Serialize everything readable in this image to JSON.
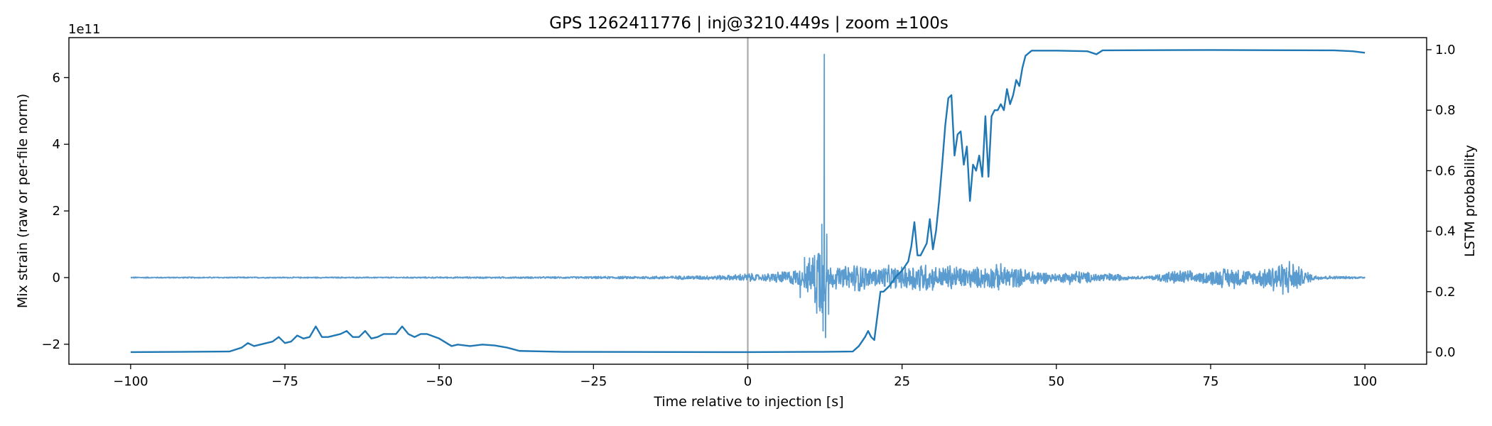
{
  "chart_data": {
    "type": "line",
    "title": "GPS 1262411776 | inj@3210.449s | zoom ±100s",
    "xlabel": "Time relative to injection [s]",
    "ylabel_left": "Mix strain (raw or per-file norm)",
    "ylabel_right": "LSTM probability",
    "left_axis_offset_label": "1e11",
    "xlim": [
      -110,
      110
    ],
    "ylim_left": [
      -2.6,
      7.2
    ],
    "ylim_right": [
      -0.04,
      1.04
    ],
    "x_ticks": [
      -100,
      -75,
      -50,
      -25,
      0,
      25,
      50,
      75,
      100
    ],
    "x_tick_labels": [
      "−100",
      "−75",
      "−50",
      "−25",
      "0",
      "25",
      "50",
      "75",
      "100"
    ],
    "y_left_ticks": [
      -2,
      0,
      2,
      4,
      6
    ],
    "y_left_tick_labels": [
      "−2",
      "0",
      "2",
      "4",
      "6"
    ],
    "y_right_ticks": [
      0.0,
      0.2,
      0.4,
      0.6,
      0.8,
      1.0
    ],
    "y_right_tick_labels": [
      "0.0",
      "0.2",
      "0.4",
      "0.6",
      "0.8",
      "1.0"
    ],
    "injection_marker": {
      "x": 0,
      "color": "#aaaaaa"
    },
    "colors": {
      "strain": "#5a9bd0",
      "probability": "#1f77b4"
    },
    "series": [
      {
        "name": "Mix strain",
        "axis": "left",
        "units": "1e11",
        "baseline": 0,
        "burst_envelope": [
          [
            -100,
            0.02
          ],
          [
            -60,
            0.02
          ],
          [
            -30,
            0.03
          ],
          [
            -15,
            0.05
          ],
          [
            -3,
            0.08
          ],
          [
            0,
            0.15
          ],
          [
            2,
            0.1
          ],
          [
            5,
            0.2
          ],
          [
            7,
            0.25
          ],
          [
            9,
            0.3
          ],
          [
            10.5,
            0.8
          ],
          [
            11.5,
            1.5
          ],
          [
            12.2,
            1.2
          ],
          [
            13,
            0.4
          ],
          [
            15,
            0.35
          ],
          [
            18,
            0.5
          ],
          [
            20,
            0.3
          ],
          [
            22,
            0.4
          ],
          [
            25,
            0.35
          ],
          [
            28,
            0.55
          ],
          [
            31,
            0.35
          ],
          [
            33,
            0.45
          ],
          [
            35,
            0.35
          ],
          [
            38,
            0.35
          ],
          [
            41,
            0.45
          ],
          [
            44,
            0.3
          ],
          [
            47,
            0.25
          ],
          [
            50,
            0.12
          ],
          [
            53,
            0.25
          ],
          [
            56,
            0.15
          ],
          [
            58,
            0.15
          ],
          [
            60,
            0.12
          ],
          [
            62,
            0.05
          ],
          [
            65,
            0.05
          ],
          [
            68,
            0.2
          ],
          [
            71,
            0.25
          ],
          [
            73,
            0.15
          ],
          [
            76,
            0.3
          ],
          [
            79,
            0.35
          ],
          [
            82,
            0.2
          ],
          [
            85,
            0.5
          ],
          [
            88,
            0.6
          ],
          [
            90,
            0.25
          ],
          [
            92,
            0.08
          ],
          [
            95,
            0.05
          ],
          [
            100,
            0.03
          ]
        ],
        "spikes": [
          {
            "x": 12.0,
            "y": 1.6
          },
          {
            "x": 12.2,
            "y": -1.6
          },
          {
            "x": 12.4,
            "y": 6.7
          },
          {
            "x": 12.6,
            "y": -1.8
          },
          {
            "x": 12.8,
            "y": 1.3
          },
          {
            "x": 13.1,
            "y": -1.1
          },
          {
            "x": 11.7,
            "y": -1.0
          },
          {
            "x": 8.5,
            "y": -0.6
          },
          {
            "x": 9.2,
            "y": 0.6
          }
        ]
      },
      {
        "name": "LSTM probability",
        "axis": "right",
        "points": [
          [
            -100,
            0.0
          ],
          [
            -84,
            0.002
          ],
          [
            -82,
            0.015
          ],
          [
            -81,
            0.03
          ],
          [
            -80,
            0.02
          ],
          [
            -79,
            0.025
          ],
          [
            -77,
            0.035
          ],
          [
            -76,
            0.05
          ],
          [
            -75,
            0.03
          ],
          [
            -74,
            0.035
          ],
          [
            -73,
            0.055
          ],
          [
            -72,
            0.045
          ],
          [
            -71,
            0.05
          ],
          [
            -70,
            0.085
          ],
          [
            -69,
            0.05
          ],
          [
            -68,
            0.05
          ],
          [
            -66,
            0.06
          ],
          [
            -65,
            0.07
          ],
          [
            -64,
            0.05
          ],
          [
            -63,
            0.05
          ],
          [
            -62,
            0.07
          ],
          [
            -61,
            0.045
          ],
          [
            -60,
            0.05
          ],
          [
            -59,
            0.06
          ],
          [
            -57,
            0.06
          ],
          [
            -56,
            0.085
          ],
          [
            -55,
            0.06
          ],
          [
            -54,
            0.05
          ],
          [
            -53,
            0.06
          ],
          [
            -52,
            0.06
          ],
          [
            -50,
            0.045
          ],
          [
            -48,
            0.02
          ],
          [
            -47,
            0.025
          ],
          [
            -45,
            0.02
          ],
          [
            -43,
            0.025
          ],
          [
            -41,
            0.022
          ],
          [
            -39,
            0.015
          ],
          [
            -37,
            0.004
          ],
          [
            -30,
            0.001
          ],
          [
            0,
            0.0
          ],
          [
            12,
            0.001
          ],
          [
            17,
            0.002
          ],
          [
            18,
            0.02
          ],
          [
            19,
            0.05
          ],
          [
            19.5,
            0.07
          ],
          [
            20,
            0.05
          ],
          [
            20.5,
            0.04
          ],
          [
            21,
            0.12
          ],
          [
            21.5,
            0.2
          ],
          [
            22,
            0.2
          ],
          [
            23,
            0.22
          ],
          [
            24,
            0.25
          ],
          [
            25,
            0.27
          ],
          [
            26,
            0.3
          ],
          [
            26.5,
            0.35
          ],
          [
            27,
            0.43
          ],
          [
            27.5,
            0.32
          ],
          [
            28,
            0.32
          ],
          [
            29,
            0.36
          ],
          [
            29.5,
            0.44
          ],
          [
            30,
            0.34
          ],
          [
            30.5,
            0.4
          ],
          [
            31,
            0.5
          ],
          [
            31.5,
            0.62
          ],
          [
            32,
            0.75
          ],
          [
            32.5,
            0.84
          ],
          [
            33,
            0.85
          ],
          [
            33.5,
            0.65
          ],
          [
            34,
            0.72
          ],
          [
            34.5,
            0.73
          ],
          [
            35,
            0.62
          ],
          [
            35.5,
            0.68
          ],
          [
            36,
            0.5
          ],
          [
            36.5,
            0.62
          ],
          [
            37,
            0.6
          ],
          [
            37.5,
            0.65
          ],
          [
            38,
            0.58
          ],
          [
            38.5,
            0.78
          ],
          [
            39,
            0.58
          ],
          [
            39.5,
            0.78
          ],
          [
            40,
            0.8
          ],
          [
            40.5,
            0.8
          ],
          [
            41,
            0.82
          ],
          [
            41.5,
            0.8
          ],
          [
            42,
            0.87
          ],
          [
            42.5,
            0.82
          ],
          [
            43,
            0.85
          ],
          [
            43.5,
            0.9
          ],
          [
            44,
            0.88
          ],
          [
            44.5,
            0.94
          ],
          [
            45,
            0.98
          ],
          [
            46,
            0.997
          ],
          [
            50,
            0.997
          ],
          [
            55,
            0.995
          ],
          [
            56.5,
            0.985
          ],
          [
            57.5,
            0.998
          ],
          [
            75,
            0.999
          ],
          [
            95,
            0.998
          ],
          [
            98,
            0.995
          ],
          [
            100,
            0.99
          ]
        ]
      }
    ]
  }
}
